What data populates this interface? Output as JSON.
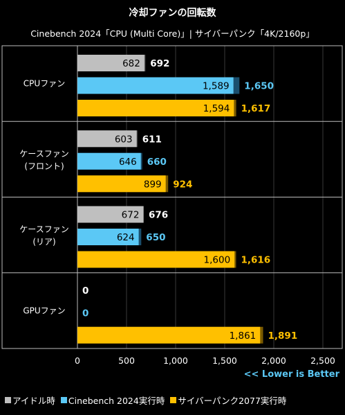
{
  "chart_data": {
    "type": "bar",
    "orientation": "horizontal",
    "title": "冷却ファンの回転数",
    "subtitle": "Cinebench 2024「CPU (Multi Core)」| サイバーパンク「4K/2160p」",
    "note": "<< Lower is Better",
    "xlim": [
      0,
      2500
    ],
    "x_ticks": [
      0,
      500,
      1000,
      1500,
      2000,
      2500
    ],
    "x_tick_labels": [
      "0",
      "500",
      "1,000",
      "1,500",
      "2,000",
      "2,500"
    ],
    "grid": true,
    "legend_position": "bottom",
    "categories": [
      {
        "line1": "CPUファン",
        "line2": ""
      },
      {
        "line1": "ケースファン",
        "line2": "(フロント)"
      },
      {
        "line1": "ケースファン",
        "line2": "(リア)"
      },
      {
        "line1": "GPUファン",
        "line2": ""
      }
    ],
    "series": [
      {
        "name": "アイドル時",
        "color": "#bfbfbf",
        "outer_color": "#5a5a5a",
        "label_color": "#ffffff",
        "avg": [
          682,
          603,
          672,
          0
        ],
        "avg_labels": [
          "682",
          "603",
          "672",
          ""
        ],
        "max": [
          692,
          611,
          676,
          0
        ],
        "max_labels": [
          "692",
          "611",
          "676",
          "0"
        ]
      },
      {
        "name": "Cinebench 2024実行時",
        "color": "#5bc8f5",
        "outer_color": "#1a4f6e",
        "label_color": "#5bc8f5",
        "avg": [
          1589,
          646,
          624,
          0
        ],
        "avg_labels": [
          "1,589",
          "646",
          "624",
          ""
        ],
        "max": [
          1650,
          660,
          650,
          0
        ],
        "max_labels": [
          "1,650",
          "660",
          "650",
          "0"
        ]
      },
      {
        "name": "サイバーパンク2077実行時",
        "color": "#ffc000",
        "outer_color": "#7a5a00",
        "label_color": "#ffc000",
        "avg": [
          1594,
          899,
          1600,
          1861
        ],
        "avg_labels": [
          "1,594",
          "899",
          "1,600",
          "1,861"
        ],
        "max": [
          1617,
          924,
          1616,
          1891
        ],
        "max_labels": [
          "1,617",
          "924",
          "1,616",
          "1,891"
        ]
      }
    ]
  }
}
